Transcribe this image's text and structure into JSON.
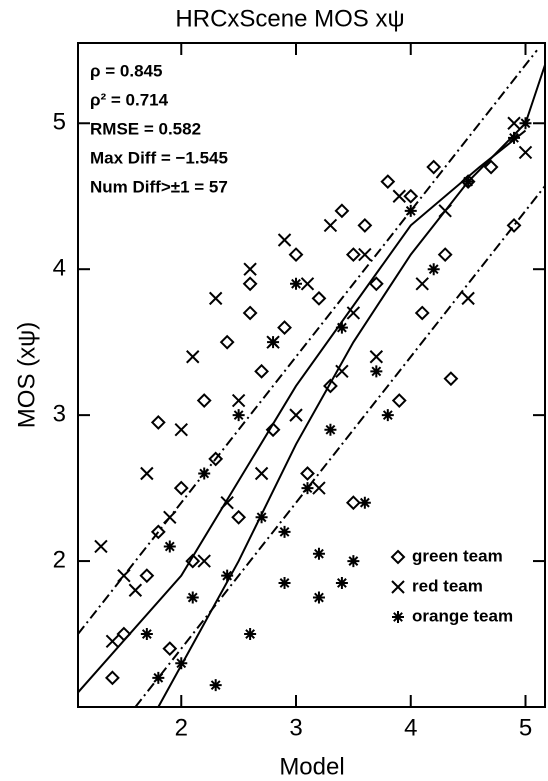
{
  "chart_data": {
    "type": "scatter",
    "title": "HRCxScene MOS xψ",
    "xlabel": "Model",
    "ylabel": "MOS (xψ)",
    "xlim": [
      1.1,
      5.17
    ],
    "ylim": [
      1.0,
      5.55
    ],
    "xticks": [
      2,
      3,
      4,
      5
    ],
    "yticks": [
      2,
      3,
      4,
      5
    ],
    "legend": "lower right",
    "annotations": [
      "ρ = 0.845",
      "ρ² = 0.714",
      "RMSE = 0.582",
      "Max Diff = −1.545",
      "Num Diff>±1 = 57"
    ],
    "series": [
      {
        "name": "green team",
        "color": "#000000",
        "marker": "diamond",
        "x": [
          1.4,
          1.5,
          1.7,
          1.8,
          1.9,
          2.0,
          2.1,
          2.2,
          2.3,
          2.4,
          2.5,
          2.6,
          2.7,
          2.8,
          2.9,
          3.0,
          3.1,
          3.2,
          3.3,
          3.4,
          3.5,
          3.6,
          3.7,
          3.8,
          3.9,
          4.0,
          4.1,
          4.2,
          4.3,
          4.5,
          4.7,
          4.9,
          1.8,
          2.6,
          3.5,
          4.35
        ],
        "y": [
          1.2,
          1.5,
          1.9,
          2.2,
          1.4,
          2.5,
          2.0,
          3.1,
          2.7,
          3.5,
          2.3,
          3.9,
          3.3,
          2.9,
          3.6,
          4.1,
          2.6,
          3.8,
          3.2,
          4.4,
          2.4,
          4.3,
          3.9,
          4.6,
          3.1,
          4.5,
          3.7,
          4.7,
          4.1,
          4.6,
          4.7,
          4.3,
          2.95,
          3.7,
          4.1,
          3.25
        ]
      },
      {
        "name": "red team",
        "color": "#000000",
        "marker": "cross",
        "x": [
          1.3,
          1.4,
          1.6,
          1.7,
          1.9,
          2.0,
          2.1,
          2.2,
          2.3,
          2.5,
          2.6,
          2.7,
          2.8,
          2.9,
          3.0,
          3.1,
          3.2,
          3.3,
          3.4,
          3.5,
          3.6,
          3.7,
          3.9,
          4.1,
          4.3,
          4.5,
          4.9,
          5.0,
          1.5,
          2.4
        ],
        "y": [
          2.1,
          1.45,
          1.8,
          2.6,
          2.3,
          2.9,
          3.4,
          2.0,
          3.8,
          3.1,
          4.0,
          2.6,
          3.5,
          4.2,
          3.0,
          3.9,
          2.5,
          4.3,
          3.3,
          3.7,
          4.1,
          3.4,
          4.5,
          3.9,
          4.4,
          3.8,
          5.0,
          4.8,
          1.9,
          2.4
        ]
      },
      {
        "name": "orange team",
        "color": "#000000",
        "marker": "asterisk",
        "x": [
          1.7,
          1.8,
          1.9,
          2.0,
          2.1,
          2.2,
          2.3,
          2.4,
          2.5,
          2.6,
          2.7,
          2.8,
          2.9,
          3.0,
          3.1,
          3.2,
          3.3,
          3.4,
          3.5,
          3.6,
          3.7,
          3.8,
          4.0,
          4.2,
          4.5,
          4.9,
          5.0,
          2.9,
          3.2,
          3.4
        ],
        "y": [
          1.5,
          1.2,
          2.1,
          1.3,
          1.75,
          2.6,
          1.15,
          1.9,
          3.0,
          1.5,
          2.3,
          3.5,
          1.85,
          3.9,
          2.5,
          1.75,
          2.9,
          3.6,
          2.0,
          2.4,
          3.3,
          3.0,
          4.4,
          4.0,
          4.6,
          4.9,
          5.0,
          2.2,
          2.05,
          1.85
        ]
      }
    ],
    "lines": [
      {
        "style": "solid",
        "x": [
          1.1,
          2.0,
          3.0,
          4.0,
          4.6,
          5.0
        ],
        "y": [
          1.1,
          1.9,
          3.2,
          4.3,
          4.7,
          4.95
        ]
      },
      {
        "style": "solid",
        "x": [
          1.8,
          2.5,
          3.0,
          3.5,
          4.0,
          4.5,
          5.0,
          5.17
        ],
        "y": [
          1.0,
          2.0,
          2.8,
          3.5,
          4.1,
          4.6,
          5.0,
          5.4
        ]
      },
      {
        "style": "dashdot",
        "x": [
          1.1,
          5.1
        ],
        "y": [
          1.5,
          5.5
        ]
      },
      {
        "style": "dashdot",
        "x": [
          1.6,
          5.17
        ],
        "y": [
          1.0,
          4.57
        ]
      }
    ]
  }
}
